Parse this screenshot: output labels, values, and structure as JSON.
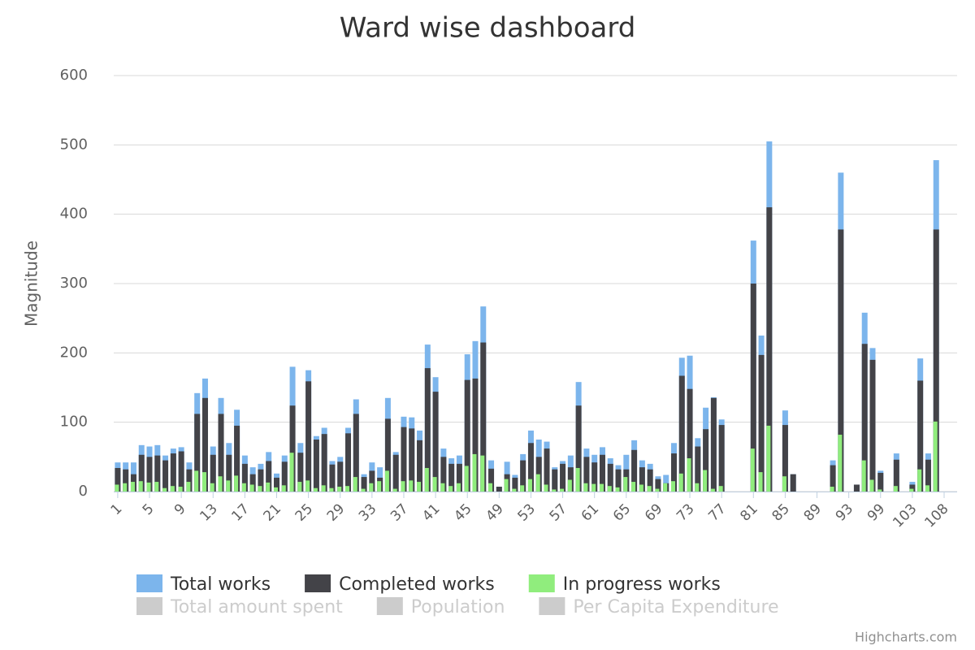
{
  "chart_data": {
    "type": "bar",
    "title": "Ward wise dashboard",
    "y_label": "Magnitude",
    "credits": "Highcharts.com",
    "ylim": [
      0,
      600
    ],
    "yticks": [
      0,
      100,
      200,
      300,
      400,
      500,
      600
    ],
    "grid": true,
    "categories": [
      "1",
      null,
      null,
      null,
      "5",
      null,
      null,
      null,
      "9",
      null,
      null,
      null,
      "13",
      null,
      null,
      null,
      "17",
      null,
      null,
      null,
      "21",
      null,
      null,
      null,
      "25",
      null,
      null,
      null,
      "29",
      null,
      null,
      null,
      "33",
      null,
      null,
      null,
      "37",
      null,
      null,
      null,
      "41",
      null,
      null,
      null,
      "45",
      null,
      null,
      null,
      "49",
      null,
      null,
      null,
      "53",
      null,
      null,
      null,
      "57",
      null,
      null,
      null,
      "61",
      null,
      null,
      null,
      "65",
      null,
      null,
      null,
      "69",
      null,
      null,
      null,
      "73",
      null,
      null,
      null,
      "77",
      null,
      null,
      null,
      "81",
      null,
      null,
      null,
      "85",
      null,
      null,
      null,
      "89",
      null,
      null,
      null,
      "93",
      null,
      null,
      null,
      "99",
      null,
      null,
      null,
      "103",
      null,
      null,
      null,
      "108",
      null
    ],
    "series": [
      {
        "name": "Total works",
        "color": "#7cb5ec",
        "values": [
          42,
          42,
          42,
          67,
          65,
          67,
          52,
          62,
          64,
          42,
          142,
          163,
          65,
          135,
          70,
          118,
          52,
          35,
          40,
          57,
          26,
          52,
          180,
          70,
          175,
          80,
          92,
          44,
          50,
          92,
          133,
          25,
          42,
          35,
          135,
          57,
          108,
          107,
          88,
          212,
          165,
          62,
          48,
          52,
          198,
          217,
          267,
          45,
          7,
          43,
          24,
          54,
          88,
          75,
          72,
          35,
          44,
          52,
          158,
          62,
          53,
          64,
          48,
          38,
          53,
          74,
          45,
          40,
          22,
          24,
          70,
          193,
          196,
          77,
          121,
          136,
          104,
          0,
          0,
          0,
          362,
          225,
          505,
          0,
          117,
          25,
          0,
          0,
          0,
          0,
          45,
          460,
          0,
          10,
          258,
          207,
          30,
          0,
          55,
          0,
          14,
          192,
          55,
          478,
          0,
          0
        ]
      },
      {
        "name": "Completed works",
        "color": "#434348",
        "values": [
          34,
          32,
          25,
          53,
          50,
          52,
          45,
          55,
          58,
          32,
          112,
          135,
          53,
          112,
          53,
          95,
          40,
          25,
          32,
          44,
          20,
          43,
          124,
          56,
          159,
          75,
          83,
          39,
          43,
          84,
          112,
          21,
          30,
          20,
          105,
          53,
          93,
          91,
          74,
          178,
          144,
          50,
          40,
          40,
          161,
          163,
          215,
          33,
          7,
          25,
          20,
          45,
          70,
          50,
          62,
          32,
          40,
          35,
          124,
          50,
          42,
          53,
          40,
          32,
          32,
          60,
          35,
          32,
          18,
          12,
          55,
          167,
          148,
          65,
          90,
          135,
          96,
          0,
          0,
          0,
          300,
          197,
          410,
          0,
          96,
          25,
          0,
          0,
          0,
          0,
          38,
          378,
          0,
          10,
          213,
          190,
          27,
          0,
          46,
          0,
          10,
          160,
          46,
          378,
          0,
          0
        ]
      },
      {
        "name": "In progress works",
        "color": "#90ed7d",
        "values": [
          10,
          12,
          14,
          15,
          13,
          14,
          5,
          8,
          7,
          14,
          30,
          28,
          12,
          22,
          16,
          23,
          12,
          10,
          8,
          13,
          6,
          9,
          56,
          14,
          16,
          5,
          9,
          5,
          7,
          8,
          21,
          4,
          12,
          15,
          30,
          4,
          15,
          16,
          14,
          34,
          21,
          12,
          8,
          12,
          37,
          54,
          52,
          12,
          0,
          18,
          4,
          9,
          18,
          25,
          10,
          3,
          4,
          17,
          34,
          12,
          11,
          11,
          8,
          6,
          21,
          14,
          10,
          8,
          4,
          12,
          15,
          26,
          48,
          12,
          31,
          4,
          8,
          0,
          0,
          0,
          62,
          28,
          95,
          0,
          22,
          0,
          0,
          0,
          0,
          0,
          7,
          82,
          0,
          0,
          45,
          17,
          3,
          0,
          8,
          0,
          4,
          32,
          9,
          101,
          0,
          0
        ]
      }
    ],
    "legend_hidden": [
      "Total amount spent",
      "Population",
      "Per Capita Expenditure"
    ],
    "hidden_color": "#cccccc"
  }
}
